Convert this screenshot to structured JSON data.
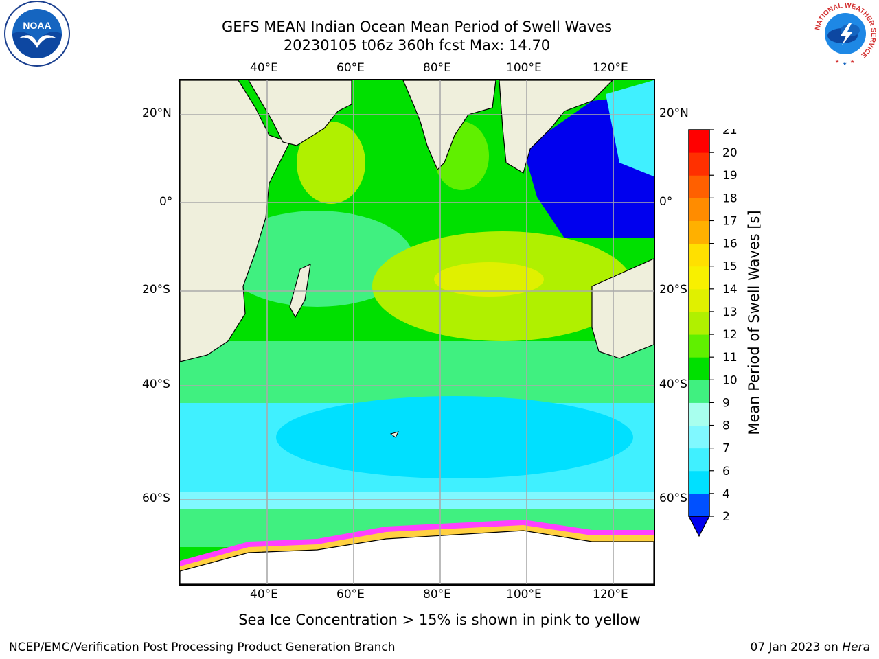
{
  "title": {
    "line1": "GEFS MEAN Indian Ocean Mean Period of Swell Waves",
    "line2": "20230105 t06z 360h fcst   Max: 14.70"
  },
  "axes": {
    "top_lon_ticks": [
      "40°E",
      "60°E",
      "80°E",
      "100°E",
      "120°E"
    ],
    "bottom_lon_ticks": [
      "40°E",
      "60°E",
      "80°E",
      "100°E",
      "120°E"
    ],
    "left_lat_ticks": [
      "20°N",
      "0°",
      "20°S",
      "40°S",
      "60°S"
    ],
    "right_lat_ticks": [
      "20°N",
      "0°",
      "20°S",
      "40°S",
      "60°S"
    ]
  },
  "colorbar": {
    "label": "Mean Period of Swell Waves [s]",
    "tick_labels": [
      "2",
      "4",
      "6",
      "7",
      "8",
      "9",
      "10",
      "11",
      "12",
      "13",
      "14",
      "15",
      "16",
      "17",
      "18",
      "19",
      "20",
      "21"
    ],
    "colors": [
      "#0050ff",
      "#00e0ff",
      "#40f0ff",
      "#80f8ff",
      "#a8ffee",
      "#40f080",
      "#00e000",
      "#60f000",
      "#b0f000",
      "#e0f000",
      "#f8f000",
      "#ffe000",
      "#ffb000",
      "#ff8c00",
      "#ff6000",
      "#ff3000",
      "#ff0000"
    ],
    "under_color": "#0000ee"
  },
  "map": {
    "land_color": "#efefdc",
    "ice_colors": [
      "#ff40ff",
      "#ff80c0",
      "#ffd040",
      "#ffffff"
    ]
  },
  "note": "Sea Ice Concentration > 15% is shown in pink to yellow",
  "footer": {
    "left": "NCEP/EMC/Verification Post Processing Product Generation Branch",
    "right_date": "07 Jan 2023 on ",
    "right_host": "Hera"
  },
  "logos": {
    "noaa": "NOAA",
    "nws_ring": "NATIONAL WEATHER SERVICE"
  }
}
